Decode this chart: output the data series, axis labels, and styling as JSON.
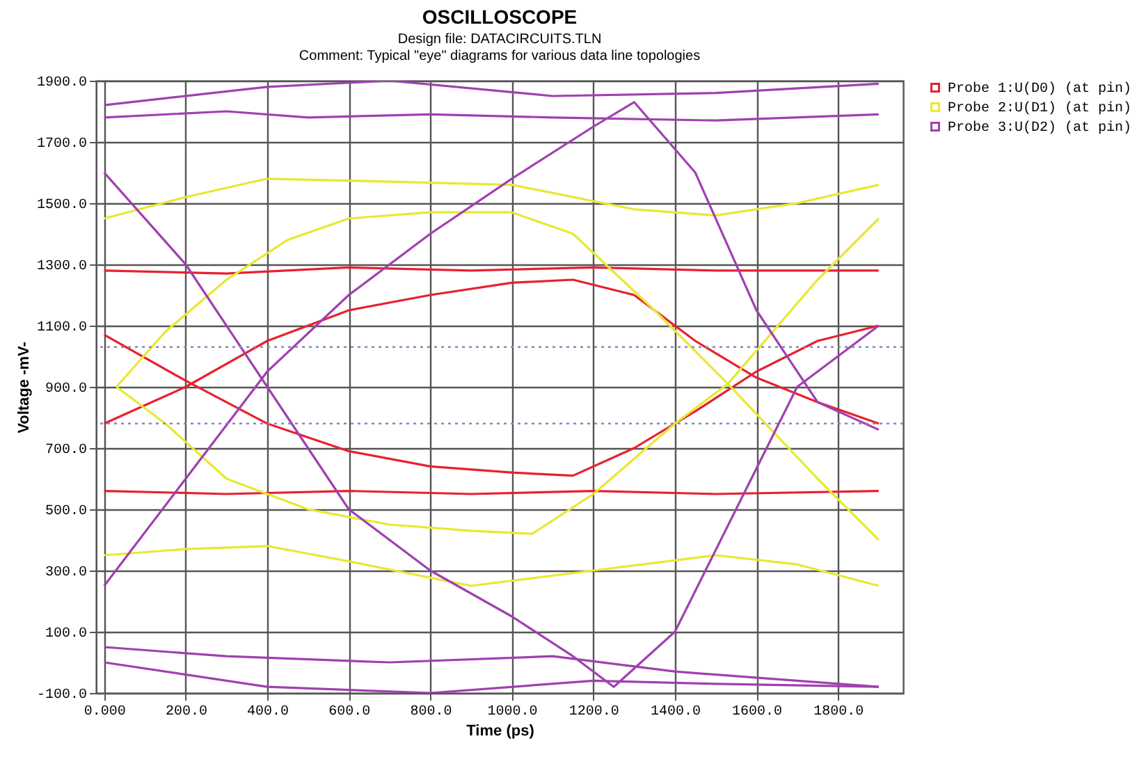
{
  "chart_data": {
    "type": "line",
    "title": "OSCILLOSCOPE",
    "subtitle": "Design file: DATACIRCUITS.TLN",
    "annotations": [
      "Comment: Typical \"eye\" diagrams for various data line topologies"
    ],
    "xlabel": "Time (ps)",
    "ylabel": "Voltage -mV-",
    "xlim": [
      -20,
      1960
    ],
    "ylim": [
      -100,
      1900
    ],
    "xticks": [
      {
        "value": 0,
        "label": "0.000"
      },
      {
        "value": 200,
        "label": "200.0"
      },
      {
        "value": 400,
        "label": "400.0"
      },
      {
        "value": 600,
        "label": "600.0"
      },
      {
        "value": 800,
        "label": "800.0"
      },
      {
        "value": 1000,
        "label": "1000.0"
      },
      {
        "value": 1200,
        "label": "1200.0"
      },
      {
        "value": 1400,
        "label": "1400.0"
      },
      {
        "value": 1600,
        "label": "1600.0"
      },
      {
        "value": 1800,
        "label": "1800.0"
      }
    ],
    "yticks": [
      {
        "value": -100,
        "label": "-100.0"
      },
      {
        "value": 100,
        "label": "100.0"
      },
      {
        "value": 300,
        "label": "300.0"
      },
      {
        "value": 500,
        "label": "500.0"
      },
      {
        "value": 700,
        "label": "700.0"
      },
      {
        "value": 900,
        "label": "900.0"
      },
      {
        "value": 1100,
        "label": "1100.0"
      },
      {
        "value": 1300,
        "label": "1300.0"
      },
      {
        "value": 1500,
        "label": "1500.0"
      },
      {
        "value": 1700,
        "label": "1700.0"
      },
      {
        "value": 1900,
        "label": "1900.0"
      }
    ],
    "grid": true,
    "legend": "top right",
    "line_style": "solid",
    "marker": "none",
    "ref_lines": [
      {
        "axis": "y",
        "value": 1030,
        "color": "#8888bb",
        "line_style": "dotted"
      },
      {
        "axis": "y",
        "value": 780,
        "color": "#8888bb",
        "line_style": "dotted"
      }
    ],
    "series": [
      {
        "name": "Probe 1:U(D0) (at pin)",
        "color": "#e82030",
        "x": [
          0,
          300,
          600,
          900,
          1200,
          1500,
          1900
        ],
        "values": [
          1280,
          1270,
          1290,
          1280,
          1290,
          1280,
          1280
        ]
      },
      {
        "color": "#e82030",
        "x": [
          0,
          300,
          600,
          900,
          1200,
          1500,
          1900
        ],
        "values": [
          560,
          550,
          560,
          550,
          560,
          550,
          560
        ]
      },
      {
        "color": "#e82030",
        "x": [
          0,
          200,
          400,
          600,
          800,
          1000,
          1150,
          1300,
          1450,
          1600,
          1750,
          1900
        ],
        "values": [
          780,
          900,
          1050,
          1150,
          1200,
          1240,
          1250,
          1200,
          1050,
          930,
          850,
          780
        ]
      },
      {
        "color": "#e82030",
        "x": [
          0,
          200,
          400,
          600,
          800,
          1000,
          1150,
          1300,
          1450,
          1600,
          1750,
          1900
        ],
        "values": [
          1070,
          920,
          780,
          690,
          640,
          620,
          610,
          700,
          820,
          950,
          1050,
          1100
        ]
      },
      {
        "name": "Probe 2:U(D1) (at pin)",
        "color": "#e8e830",
        "x": [
          0,
          200,
          400,
          700,
          1000,
          1300,
          1500,
          1700,
          1900
        ],
        "values": [
          1450,
          1520,
          1580,
          1570,
          1560,
          1480,
          1460,
          1500,
          1560
        ]
      },
      {
        "color": "#e8e830",
        "x": [
          0,
          200,
          400,
          600,
          900,
          1200,
          1500,
          1700,
          1900
        ],
        "values": [
          350,
          370,
          380,
          330,
          250,
          300,
          350,
          320,
          250
        ]
      },
      {
        "color": "#e8e830",
        "x": [
          30,
          150,
          300,
          450,
          600,
          800,
          1000,
          1150,
          1350,
          1530,
          1750,
          1900
        ],
        "values": [
          900,
          1080,
          1250,
          1380,
          1450,
          1470,
          1470,
          1400,
          1150,
          910,
          600,
          400
        ]
      },
      {
        "color": "#e8e830",
        "x": [
          30,
          150,
          300,
          500,
          700,
          900,
          1050,
          1200,
          1400,
          1530,
          1750,
          1900
        ],
        "values": [
          900,
          780,
          600,
          500,
          450,
          430,
          420,
          550,
          780,
          910,
          1250,
          1450
        ]
      },
      {
        "name": "Probe 3:U(D2) (at pin)",
        "color": "#a040b0",
        "x": [
          0,
          400,
          700,
          1100,
          1500,
          1900
        ],
        "values": [
          1820,
          1880,
          1900,
          1850,
          1860,
          1890
        ]
      },
      {
        "color": "#a040b0",
        "x": [
          0,
          300,
          500,
          800,
          1100,
          1500,
          1900
        ],
        "values": [
          1780,
          1800,
          1780,
          1790,
          1780,
          1770,
          1790
        ]
      },
      {
        "color": "#a040b0",
        "x": [
          0,
          300,
          700,
          1100,
          1400,
          1700,
          1900
        ],
        "values": [
          50,
          20,
          0,
          20,
          -30,
          -60,
          -80
        ]
      },
      {
        "color": "#a040b0",
        "x": [
          0,
          400,
          800,
          1200,
          1500,
          1900
        ],
        "values": [
          0,
          -80,
          -100,
          -60,
          -70,
          -80
        ]
      },
      {
        "color": "#a040b0",
        "x": [
          0,
          200,
          400,
          600,
          800,
          1000,
          1150,
          1250,
          1400,
          1550,
          1700,
          1900
        ],
        "values": [
          1600,
          1300,
          900,
          500,
          300,
          150,
          20,
          -80,
          100,
          500,
          900,
          1100
        ]
      },
      {
        "color": "#a040b0",
        "x": [
          0,
          200,
          400,
          600,
          800,
          1000,
          1200,
          1300,
          1450,
          1600,
          1750,
          1900
        ],
        "values": [
          250,
          600,
          950,
          1200,
          1400,
          1580,
          1750,
          1830,
          1600,
          1150,
          850,
          760
        ]
      }
    ]
  }
}
